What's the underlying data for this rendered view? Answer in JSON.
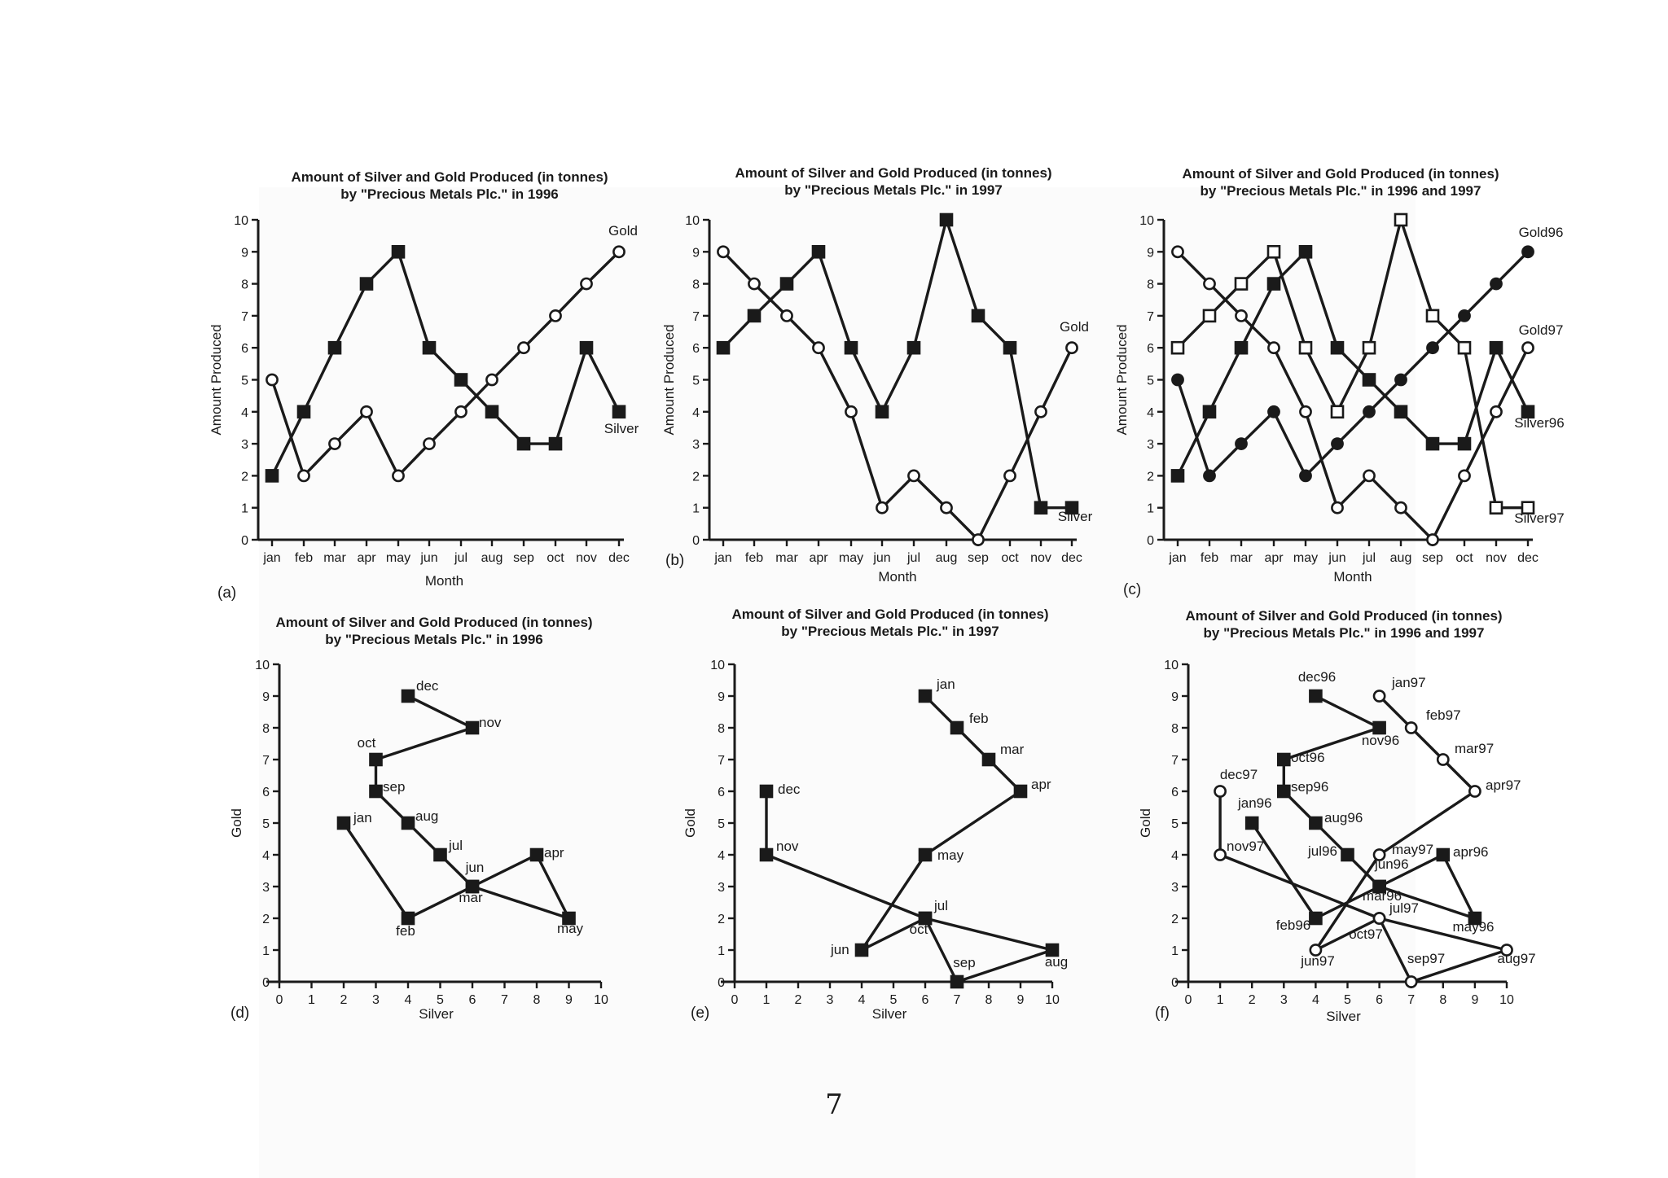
{
  "page": {
    "number": "7"
  },
  "chart_data": [
    {
      "type": "line",
      "panel": "(a)",
      "title": [
        "Amount of Silver and Gold Produced (in tonnes)",
        "by \"Precious Metals Plc.\" in 1996"
      ],
      "xlabel": "Month",
      "ylabel": "Amount Produced",
      "categories": [
        "jan",
        "feb",
        "mar",
        "apr",
        "may",
        "jun",
        "jul",
        "aug",
        "sep",
        "oct",
        "nov",
        "dec"
      ],
      "ylim": [
        0,
        10
      ],
      "yticks": [
        0,
        1,
        2,
        3,
        4,
        5,
        6,
        7,
        8,
        9,
        10
      ],
      "series": [
        {
          "name": "Gold",
          "marker": "open-circle",
          "values": [
            5,
            2,
            3,
            4,
            2,
            3,
            4,
            5,
            6,
            7,
            8,
            9
          ]
        },
        {
          "name": "Silver",
          "marker": "filled-square",
          "values": [
            2,
            4,
            6,
            8,
            9,
            6,
            5,
            4,
            3,
            3,
            6,
            4
          ]
        }
      ]
    },
    {
      "type": "line",
      "panel": "(b)",
      "title": [
        "Amount of Silver and Gold Produced (in tonnes)",
        "by \"Precious Metals Plc.\" in 1997"
      ],
      "xlabel": "Month",
      "ylabel": "Amount Produced",
      "categories": [
        "jan",
        "feb",
        "mar",
        "apr",
        "may",
        "jun",
        "jul",
        "aug",
        "sep",
        "oct",
        "nov",
        "dec"
      ],
      "ylim": [
        0,
        10
      ],
      "yticks": [
        0,
        1,
        2,
        3,
        4,
        5,
        6,
        7,
        8,
        9,
        10
      ],
      "series": [
        {
          "name": "Gold",
          "marker": "open-circle",
          "values": [
            9,
            8,
            7,
            6,
            4,
            1,
            2,
            1,
            0,
            2,
            4,
            6
          ]
        },
        {
          "name": "Silver",
          "marker": "filled-square",
          "values": [
            6,
            7,
            8,
            9,
            6,
            4,
            6,
            10,
            7,
            6,
            1,
            1
          ]
        }
      ]
    },
    {
      "type": "line",
      "panel": "(c)",
      "title": [
        "Amount of Silver and Gold Produced (in tonnes)",
        "by \"Precious Metals Plc.\" in 1996 and 1997"
      ],
      "xlabel": "Month",
      "ylabel": "Amount Produced",
      "categories": [
        "jan",
        "feb",
        "mar",
        "apr",
        "may",
        "jun",
        "jul",
        "aug",
        "sep",
        "oct",
        "nov",
        "dec"
      ],
      "ylim": [
        0,
        10
      ],
      "yticks": [
        0,
        1,
        2,
        3,
        4,
        5,
        6,
        7,
        8,
        9,
        10
      ],
      "series": [
        {
          "name": "Gold96",
          "marker": "filled-circle",
          "values": [
            5,
            2,
            3,
            4,
            2,
            3,
            4,
            5,
            6,
            7,
            8,
            9
          ]
        },
        {
          "name": "Gold97",
          "marker": "open-circle",
          "values": [
            9,
            8,
            7,
            6,
            4,
            1,
            2,
            1,
            0,
            2,
            4,
            6
          ]
        },
        {
          "name": "Silver96",
          "marker": "filled-square",
          "values": [
            2,
            4,
            6,
            8,
            9,
            6,
            5,
            4,
            3,
            3,
            6,
            4
          ]
        },
        {
          "name": "Silver97",
          "marker": "open-square",
          "values": [
            6,
            7,
            8,
            9,
            6,
            4,
            6,
            10,
            7,
            6,
            1,
            1
          ]
        }
      ]
    },
    {
      "type": "scatter",
      "panel": "(d)",
      "title": [
        "Amount of Silver and Gold Produced (in tonnes)",
        "by \"Precious Metals Plc.\" in 1996"
      ],
      "xlabel": "Silver",
      "ylabel": "Gold",
      "xlim": [
        0,
        10
      ],
      "ylim": [
        0,
        10
      ],
      "xticks": [
        0,
        1,
        2,
        3,
        4,
        5,
        6,
        7,
        8,
        9,
        10
      ],
      "yticks": [
        0,
        1,
        2,
        3,
        4,
        5,
        6,
        7,
        8,
        9,
        10
      ],
      "series": [
        {
          "marker": "filled-square",
          "points": [
            {
              "label": "jan",
              "x": 2,
              "y": 5
            },
            {
              "label": "feb",
              "x": 4,
              "y": 2
            },
            {
              "label": "mar",
              "x": 6,
              "y": 3
            },
            {
              "label": "apr",
              "x": 8,
              "y": 4
            },
            {
              "label": "may",
              "x": 9,
              "y": 2
            },
            {
              "label": "jun",
              "x": 6,
              "y": 3
            },
            {
              "label": "jul",
              "x": 5,
              "y": 4
            },
            {
              "label": "aug",
              "x": 4,
              "y": 5
            },
            {
              "label": "sep",
              "x": 3,
              "y": 6
            },
            {
              "label": "oct",
              "x": 3,
              "y": 7
            },
            {
              "label": "nov",
              "x": 6,
              "y": 8
            },
            {
              "label": "dec",
              "x": 4,
              "y": 9
            }
          ]
        }
      ]
    },
    {
      "type": "scatter",
      "panel": "(e)",
      "title": [
        "Amount of Silver and Gold Produced (in tonnes)",
        "by \"Precious Metals Plc.\" in 1997"
      ],
      "xlabel": "Silver",
      "ylabel": "Gold",
      "xlim": [
        0,
        10
      ],
      "ylim": [
        0,
        10
      ],
      "xticks": [
        0,
        1,
        2,
        3,
        4,
        5,
        6,
        7,
        8,
        9,
        10
      ],
      "yticks": [
        0,
        1,
        2,
        3,
        4,
        5,
        6,
        7,
        8,
        9,
        10
      ],
      "series": [
        {
          "marker": "filled-square",
          "points": [
            {
              "label": "jan",
              "x": 6,
              "y": 9
            },
            {
              "label": "feb",
              "x": 7,
              "y": 8
            },
            {
              "label": "mar",
              "x": 8,
              "y": 7
            },
            {
              "label": "apr",
              "x": 9,
              "y": 6
            },
            {
              "label": "may",
              "x": 6,
              "y": 4
            },
            {
              "label": "jun",
              "x": 4,
              "y": 1
            },
            {
              "label": "jul",
              "x": 6,
              "y": 2
            },
            {
              "label": "aug",
              "x": 10,
              "y": 1
            },
            {
              "label": "sep",
              "x": 7,
              "y": 0
            },
            {
              "label": "oct",
              "x": 6,
              "y": 2
            },
            {
              "label": "nov",
              "x": 1,
              "y": 4
            },
            {
              "label": "dec",
              "x": 1,
              "y": 6
            }
          ]
        }
      ]
    },
    {
      "type": "scatter",
      "panel": "(f)",
      "title": [
        "Amount of Silver and Gold Produced (in tonnes)",
        "by \"Precious Metals Plc.\" in 1996 and 1997"
      ],
      "xlabel": "Silver",
      "ylabel": "Gold",
      "xlim": [
        0,
        10
      ],
      "ylim": [
        0,
        10
      ],
      "xticks": [
        0,
        1,
        2,
        3,
        4,
        5,
        6,
        7,
        8,
        9,
        10
      ],
      "yticks": [
        0,
        1,
        2,
        3,
        4,
        5,
        6,
        7,
        8,
        9,
        10
      ],
      "series": [
        {
          "marker": "filled-square",
          "points": [
            {
              "label": "jan96",
              "x": 2,
              "y": 5
            },
            {
              "label": "feb96",
              "x": 4,
              "y": 2
            },
            {
              "label": "mar96",
              "x": 6,
              "y": 3
            },
            {
              "label": "apr96",
              "x": 8,
              "y": 4
            },
            {
              "label": "may96",
              "x": 9,
              "y": 2
            },
            {
              "label": "jun96",
              "x": 6,
              "y": 3
            },
            {
              "label": "jul96",
              "x": 5,
              "y": 4
            },
            {
              "label": "aug96",
              "x": 4,
              "y": 5
            },
            {
              "label": "sep96",
              "x": 3,
              "y": 6
            },
            {
              "label": "oct96",
              "x": 3,
              "y": 7
            },
            {
              "label": "nov96",
              "x": 6,
              "y": 8
            },
            {
              "label": "dec96",
              "x": 4,
              "y": 9
            }
          ]
        },
        {
          "marker": "open-circle",
          "points": [
            {
              "label": "jan97",
              "x": 6,
              "y": 9
            },
            {
              "label": "feb97",
              "x": 7,
              "y": 8
            },
            {
              "label": "mar97",
              "x": 8,
              "y": 7
            },
            {
              "label": "apr97",
              "x": 9,
              "y": 6
            },
            {
              "label": "may97",
              "x": 6,
              "y": 4
            },
            {
              "label": "jun97",
              "x": 4,
              "y": 1
            },
            {
              "label": "jul97",
              "x": 6,
              "y": 2
            },
            {
              "label": "aug97",
              "x": 10,
              "y": 1
            },
            {
              "label": "sep97",
              "x": 7,
              "y": 0
            },
            {
              "label": "oct97",
              "x": 6,
              "y": 2
            },
            {
              "label": "nov97",
              "x": 1,
              "y": 4
            },
            {
              "label": "dec97",
              "x": 1,
              "y": 6
            }
          ]
        }
      ]
    }
  ]
}
